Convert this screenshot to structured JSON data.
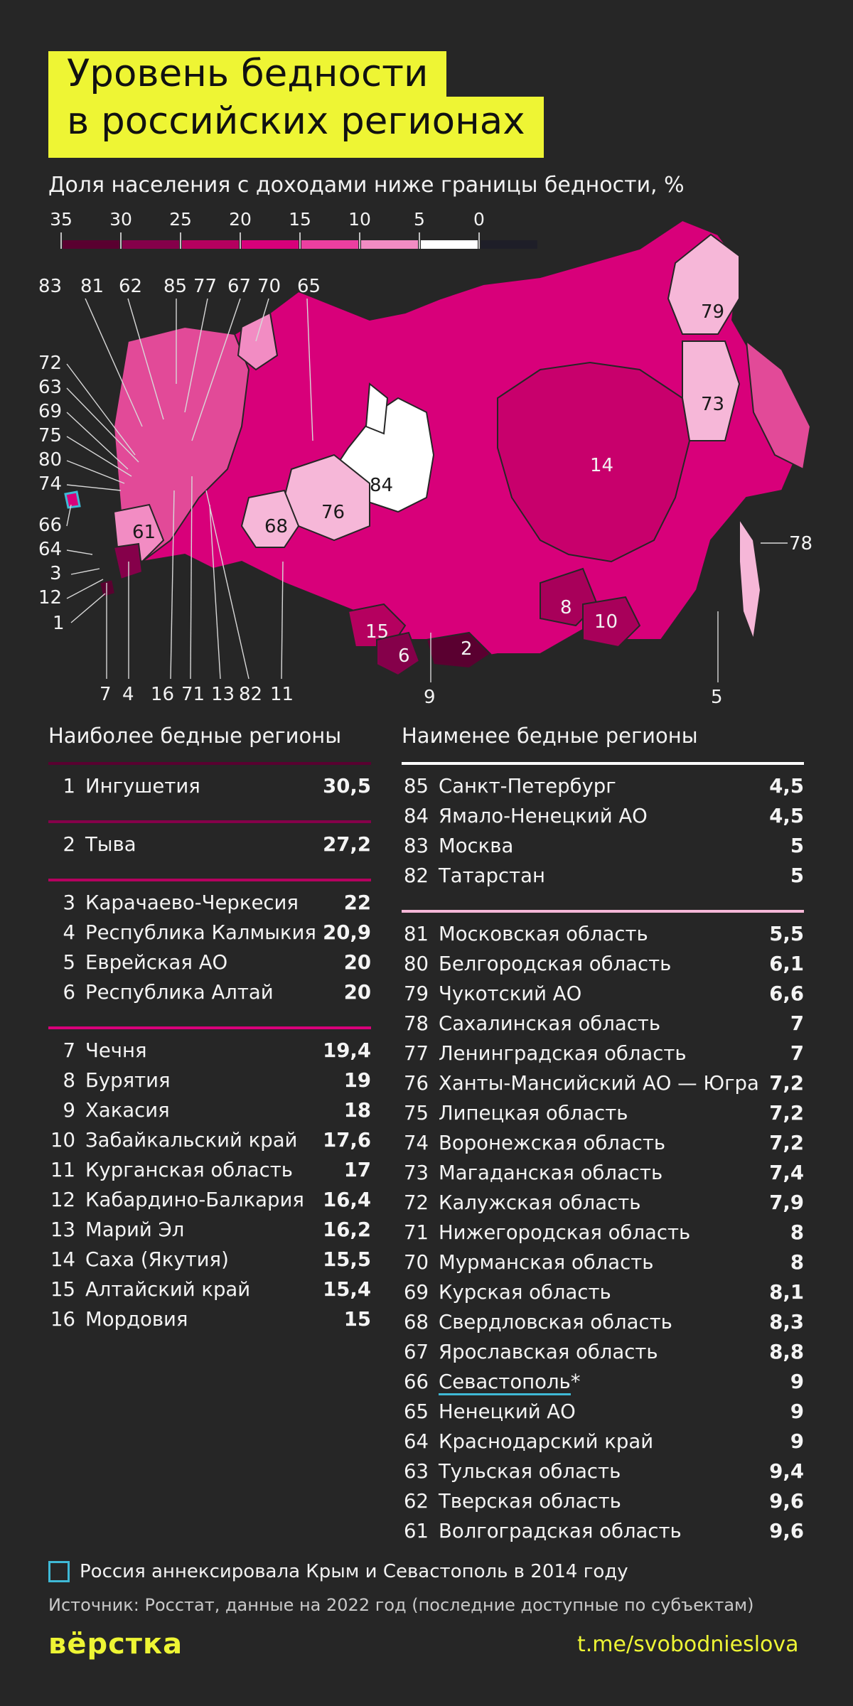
{
  "title": {
    "line1": "Уровень бедности",
    "line2": "в российских регионах"
  },
  "subtitle": "Доля населения с доходами ниже границы бедности, %",
  "scale": {
    "labels": [
      "35",
      "30",
      "25",
      "20",
      "15",
      "10",
      "5",
      "0"
    ],
    "colors": [
      "#5a0030",
      "#85004a",
      "#b5005f",
      "#d8007a",
      "#ec3fa0",
      "#f28cc3",
      "#ffffff",
      "#1e1e28"
    ]
  },
  "map": {
    "top_labels": [
      "83",
      "81",
      "62",
      "85",
      "77",
      "67",
      "70",
      "65"
    ],
    "left_labels": [
      "72",
      "63",
      "69",
      "75",
      "80",
      "74",
      "66",
      "64",
      "3",
      "12",
      "1"
    ],
    "bottom_labels": [
      "7",
      "4",
      "16",
      "71",
      "13",
      "82",
      "11",
      "9",
      "5"
    ],
    "inner_labels": [
      "79",
      "73",
      "14",
      "84",
      "76",
      "68",
      "61",
      "8",
      "10",
      "15",
      "6",
      "2",
      "78"
    ]
  },
  "poorest": {
    "heading": "Наиболее бедные регионы",
    "divider_colors": [
      "#5a0030",
      "#85004a",
      "#b5005f",
      "#d8007a"
    ],
    "groups": [
      [
        {
          "rank": "1",
          "name": "Ингушетия",
          "value": "30,5"
        }
      ],
      [
        {
          "rank": "2",
          "name": "Тыва",
          "value": "27,2"
        }
      ],
      [
        {
          "rank": "3",
          "name": "Карачаево-Черкесия",
          "value": "22"
        },
        {
          "rank": "4",
          "name": "Республика Калмыкия",
          "value": "20,9"
        },
        {
          "rank": "5",
          "name": "Еврейская АО",
          "value": "20"
        },
        {
          "rank": "6",
          "name": "Республика Алтай",
          "value": "20"
        }
      ],
      [
        {
          "rank": "7",
          "name": "Чечня",
          "value": "19,4"
        },
        {
          "rank": "8",
          "name": "Бурятия",
          "value": "19"
        },
        {
          "rank": "9",
          "name": "Хакасия",
          "value": "18"
        },
        {
          "rank": "10",
          "name": "Забайкальский край",
          "value": "17,6"
        },
        {
          "rank": "11",
          "name": "Курганская область",
          "value": "17"
        },
        {
          "rank": "12",
          "name": "Кабардино-Балкария",
          "value": "16,4"
        },
        {
          "rank": "13",
          "name": "Марий Эл",
          "value": "16,2"
        },
        {
          "rank": "14",
          "name": "Саха (Якутия)",
          "value": "15,5"
        },
        {
          "rank": "15",
          "name": "Алтайский край",
          "value": "15,4"
        },
        {
          "rank": "16",
          "name": "Мордовия",
          "value": "15"
        }
      ]
    ]
  },
  "richest": {
    "heading": "Наименее бедные регионы",
    "divider_colors": [
      "#ffffff",
      "#f6b7d8"
    ],
    "groups": [
      [
        {
          "rank": "85",
          "name": "Санкт-Петербург",
          "value": "4,5"
        },
        {
          "rank": "84",
          "name": "Ямало-Ненецкий АО",
          "value": "4,5"
        },
        {
          "rank": "83",
          "name": "Москва",
          "value": "5"
        },
        {
          "rank": "82",
          "name": "Татарстан",
          "value": "5"
        }
      ],
      [
        {
          "rank": "81",
          "name": "Московская область",
          "value": "5,5"
        },
        {
          "rank": "80",
          "name": "Белгородская область",
          "value": "6,1"
        },
        {
          "rank": "79",
          "name": "Чукотский АО",
          "value": "6,6"
        },
        {
          "rank": "78",
          "name": "Сахалинская область",
          "value": "7"
        },
        {
          "rank": "77",
          "name": "Ленинградская область",
          "value": "7"
        },
        {
          "rank": "76",
          "name": "Ханты-Мансийский АО — Югра",
          "value": "7,2"
        },
        {
          "rank": "75",
          "name": "Липецкая область",
          "value": "7,2"
        },
        {
          "rank": "74",
          "name": "Воронежская область",
          "value": "7,2"
        },
        {
          "rank": "73",
          "name": "Магаданская область",
          "value": "7,4"
        },
        {
          "rank": "72",
          "name": "Калужская область",
          "value": "7,9"
        },
        {
          "rank": "71",
          "name": "Нижегородская область",
          "value": "8"
        },
        {
          "rank": "70",
          "name": "Мурманская область",
          "value": "8"
        },
        {
          "rank": "69",
          "name": "Курская область",
          "value": "8,1"
        },
        {
          "rank": "68",
          "name": "Свердловская область",
          "value": "8,3"
        },
        {
          "rank": "67",
          "name": "Ярославская область",
          "value": "8,8"
        },
        {
          "rank": "66",
          "name": "Севастополь*",
          "value": "9"
        },
        {
          "rank": "65",
          "name": "Ненецкий АО",
          "value": "9"
        },
        {
          "rank": "64",
          "name": "Краснодарский край",
          "value": "9"
        },
        {
          "rank": "63",
          "name": "Тульская область",
          "value": "9,4"
        },
        {
          "rank": "62",
          "name": "Тверская область",
          "value": "9,6"
        },
        {
          "rank": "61",
          "name": "Волгоградская область",
          "value": "9,6"
        }
      ]
    ]
  },
  "footnote": "Россия аннексировала Крым и Севастополь в 2014 году",
  "source": "Источник: Росстат, данные на 2022 год (последние доступные по субъектам)",
  "brand": "вёрстка",
  "link": "t.me/svobodnieslova",
  "colors": {
    "accent": "#eef534",
    "background": "#262626",
    "annex_outline": "#3fb9d6"
  }
}
